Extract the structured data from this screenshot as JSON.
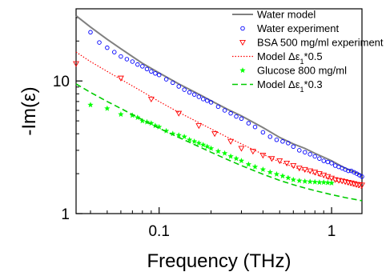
{
  "chart_data": {
    "type": "scatter",
    "title": "",
    "xlabel": "Frequency (THz)",
    "ylabel": "-Im(ε)",
    "xscale": "log",
    "yscale": "log",
    "xlim": [
      0.033,
      1.5
    ],
    "ylim": [
      1,
      35
    ],
    "xticks": [
      {
        "value": 0.1,
        "label": "0.1"
      },
      {
        "value": 1,
        "label": "1"
      }
    ],
    "yticks": [
      {
        "value": 1,
        "label": "1"
      },
      {
        "value": 10,
        "label": "10"
      }
    ],
    "grid": false,
    "legend_position": "top-right",
    "series": [
      {
        "name": "Water model",
        "style": "solid-line",
        "color": "#808080",
        "x": [
          0.033,
          0.04,
          0.05,
          0.06,
          0.08,
          0.1,
          0.13,
          0.17,
          0.2,
          0.25,
          0.3,
          0.4,
          0.5,
          0.6,
          0.7,
          0.8,
          1.0,
          1.2,
          1.5
        ],
        "y": [
          31,
          25.5,
          20.6,
          17.5,
          13.6,
          11.5,
          9.5,
          7.95,
          7.1,
          6.1,
          5.45,
          4.45,
          3.75,
          3.35,
          3.1,
          2.85,
          2.5,
          2.2,
          1.95
        ]
      },
      {
        "name": "Water experiment",
        "style": "open-circle",
        "color": "#0000ff",
        "x": [
          0.04,
          0.045,
          0.05,
          0.055,
          0.06,
          0.065,
          0.07,
          0.075,
          0.08,
          0.085,
          0.09,
          0.095,
          0.1,
          0.11,
          0.12,
          0.13,
          0.14,
          0.15,
          0.16,
          0.17,
          0.18,
          0.19,
          0.2,
          0.22,
          0.24,
          0.26,
          0.28,
          0.3,
          0.33,
          0.36,
          0.4,
          0.44,
          0.48,
          0.52,
          0.56,
          0.6,
          0.65,
          0.7,
          0.75,
          0.8,
          0.85,
          0.9,
          0.95,
          1.0,
          1.05,
          1.1,
          1.15,
          1.2,
          1.25,
          1.3,
          1.35,
          1.4,
          1.45,
          1.5
        ],
        "y": [
          23.3,
          19.5,
          17.8,
          16.5,
          15.3,
          14.6,
          14.0,
          13.3,
          12.9,
          12.3,
          11.8,
          11.4,
          11.1,
          10.3,
          9.7,
          9.1,
          8.6,
          8.2,
          7.9,
          7.6,
          7.3,
          7.1,
          6.9,
          6.4,
          6.0,
          5.7,
          5.4,
          5.2,
          4.8,
          4.5,
          4.1,
          3.8,
          3.6,
          3.5,
          3.4,
          3.2,
          3.0,
          2.9,
          2.8,
          2.7,
          2.6,
          2.5,
          2.45,
          2.4,
          2.3,
          2.25,
          2.2,
          2.15,
          2.1,
          2.1,
          2.05,
          2.0,
          1.95,
          1.9
        ]
      },
      {
        "name": "BSA 500 mg/ml experiment",
        "style": "open-triangle-down",
        "color": "#ff0000",
        "x": [
          0.033,
          0.06,
          0.09,
          0.13,
          0.17,
          0.21,
          0.26,
          0.3,
          0.35,
          0.4,
          0.45,
          0.5,
          0.55,
          0.6,
          0.65,
          0.7,
          0.75,
          0.8,
          0.85,
          0.9,
          0.95,
          1.0,
          1.05,
          1.1,
          1.15,
          1.2,
          1.25,
          1.3,
          1.35,
          1.4,
          1.45,
          1.5
        ],
        "y": [
          13.5,
          10.5,
          7.3,
          5.7,
          4.6,
          4.0,
          3.5,
          3.1,
          2.95,
          2.75,
          2.6,
          2.5,
          2.4,
          2.3,
          2.2,
          2.15,
          2.1,
          2.05,
          2.0,
          1.95,
          1.9,
          1.85,
          1.8,
          1.78,
          1.76,
          1.74,
          1.72,
          1.7,
          1.68,
          1.66,
          1.65,
          1.64
        ]
      },
      {
        "name": "Model Δε1*0.5",
        "style": "dotted-line",
        "color": "#ff0000",
        "x": [
          0.033,
          0.04,
          0.05,
          0.06,
          0.08,
          0.1,
          0.13,
          0.17,
          0.2,
          0.25,
          0.3,
          0.4,
          0.5,
          0.6,
          0.7,
          0.8,
          1.0,
          1.2,
          1.5
        ],
        "y": [
          16.5,
          14.0,
          11.8,
          10.3,
          8.3,
          7.0,
          5.8,
          4.85,
          4.35,
          3.75,
          3.35,
          2.8,
          2.45,
          2.25,
          2.1,
          1.98,
          1.8,
          1.68,
          1.55
        ]
      },
      {
        "name": "Glucose 800 mg/ml",
        "style": "star",
        "color": "#00ff00",
        "x": [
          0.04,
          0.05,
          0.06,
          0.07,
          0.075,
          0.08,
          0.085,
          0.09,
          0.095,
          0.1,
          0.11,
          0.12,
          0.13,
          0.14,
          0.15,
          0.16,
          0.17,
          0.18,
          0.19,
          0.2,
          0.22,
          0.24,
          0.26,
          0.28,
          0.3,
          0.33,
          0.36,
          0.4,
          0.44,
          0.48,
          0.52,
          0.56,
          0.6,
          0.65,
          0.7,
          0.75,
          0.8,
          0.85,
          0.9,
          0.95,
          1.0
        ],
        "y": [
          6.6,
          6.2,
          5.6,
          5.5,
          5.3,
          5.0,
          4.9,
          4.8,
          4.6,
          4.5,
          4.2,
          4.0,
          3.9,
          3.8,
          3.6,
          3.5,
          3.4,
          3.3,
          3.2,
          3.1,
          2.95,
          2.85,
          2.7,
          2.6,
          2.5,
          2.35,
          2.25,
          2.15,
          2.05,
          1.98,
          1.92,
          1.86,
          1.8,
          1.77,
          1.75,
          1.74,
          1.73,
          1.72,
          1.72,
          1.71,
          1.7
        ]
      },
      {
        "name": "Model Δε1*0.3",
        "style": "dashed-line",
        "color": "#00cc00",
        "x": [
          0.033,
          0.04,
          0.05,
          0.06,
          0.08,
          0.1,
          0.13,
          0.17,
          0.2,
          0.25,
          0.3,
          0.4,
          0.5,
          0.6,
          0.7,
          0.8,
          1.0,
          1.2,
          1.5
        ],
        "y": [
          9.5,
          8.2,
          7.0,
          6.2,
          5.1,
          4.4,
          3.75,
          3.2,
          2.9,
          2.55,
          2.3,
          1.98,
          1.78,
          1.65,
          1.56,
          1.49,
          1.39,
          1.32,
          1.25
        ]
      }
    ]
  }
}
